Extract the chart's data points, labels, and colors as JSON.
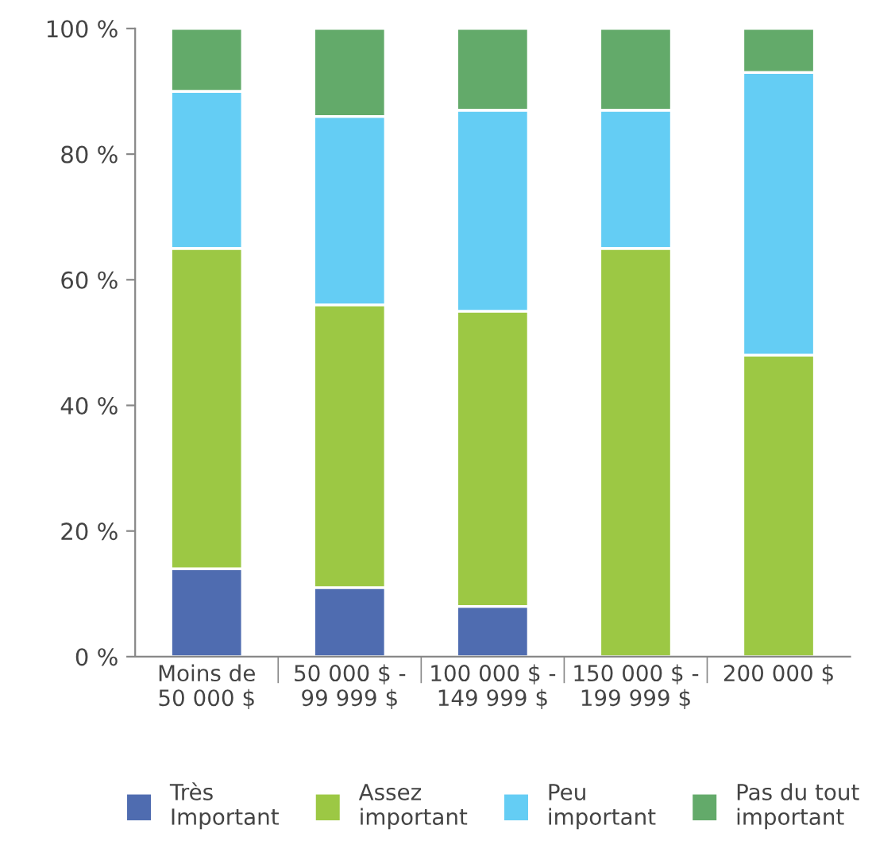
{
  "chart_data": {
    "type": "bar",
    "stacked": true,
    "categories": [
      "Moins de\n50 000 $",
      "50 000 $ -\n99 999 $",
      "100 000 $ -\n149 999 $",
      "150 000 $ -\n199 999 $",
      "200 000 $"
    ],
    "series": [
      {
        "name": "Très\nImportant",
        "color": "#4f6cb0",
        "values": [
          14,
          11,
          8,
          0,
          0
        ]
      },
      {
        "name": "Assez\nimportant",
        "color": "#9cc844",
        "values": [
          51,
          45,
          47,
          65,
          48
        ]
      },
      {
        "name": "Peu\nimportant",
        "color": "#64cdf4",
        "values": [
          25,
          30,
          32,
          22,
          45
        ]
      },
      {
        "name": "Pas du tout\nimportant",
        "color": "#63aa6a",
        "values": [
          10,
          14,
          13,
          13,
          7
        ]
      }
    ],
    "ylim": [
      0,
      100
    ],
    "yticks": [
      {
        "value": 0,
        "label": "0 %"
      },
      {
        "value": 20,
        "label": "20 %"
      },
      {
        "value": 40,
        "label": "40 %"
      },
      {
        "value": 60,
        "label": "60 %"
      },
      {
        "value": 80,
        "label": "80 %"
      },
      {
        "value": 100,
        "label": "100 %"
      }
    ],
    "grid": false,
    "legend": "bottom"
  }
}
